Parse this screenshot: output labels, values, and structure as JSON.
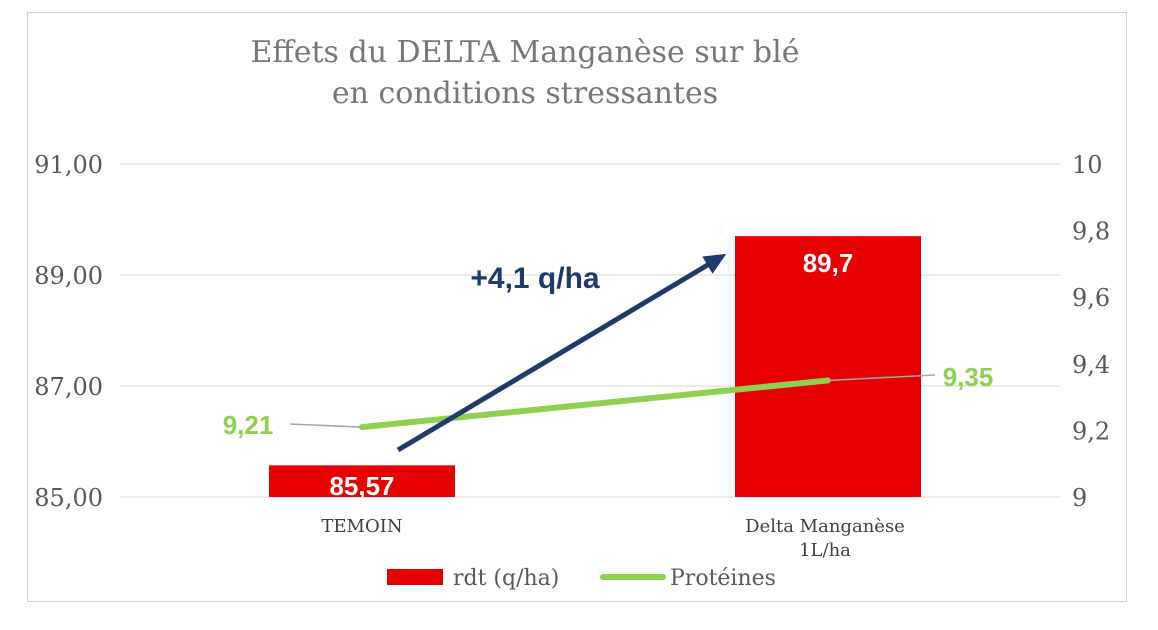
{
  "chart_data": {
    "type": "bar",
    "title_lines": [
      "Effets du DELTA Manganèse sur blé",
      "en conditions stressantes"
    ],
    "categories": [
      {
        "lines": [
          "TEMOIN"
        ]
      },
      {
        "lines": [
          "Delta Manganèse",
          "1L/ha"
        ]
      }
    ],
    "series": [
      {
        "name": "rdt (q/ha)",
        "type": "bar",
        "axis": "left",
        "values": [
          85.57,
          89.7
        ],
        "data_labels": [
          "85,57",
          "89,7"
        ],
        "color": "#e60000"
      },
      {
        "name": "Protéines",
        "type": "line",
        "axis": "right",
        "values": [
          9.21,
          9.35
        ],
        "data_labels": [
          "9,21",
          "9,35"
        ],
        "color": "#8fd14f"
      }
    ],
    "left_axis": {
      "min": 85,
      "max": 91,
      "ticks": [
        85,
        87,
        89,
        91
      ],
      "tick_labels": [
        "85,00",
        "87,00",
        "89,00",
        "91,00"
      ]
    },
    "right_axis": {
      "min": 9,
      "max": 10,
      "ticks": [
        9,
        9.2,
        9.4,
        9.6,
        9.8,
        10
      ],
      "tick_labels": [
        "9",
        "9,2",
        "9,4",
        "9,6",
        "9,8",
        "10"
      ]
    },
    "grid": true,
    "legend_position": "bottom",
    "annotation": {
      "text": "+4,1 q/ha",
      "color": "#1f3b6b"
    }
  }
}
